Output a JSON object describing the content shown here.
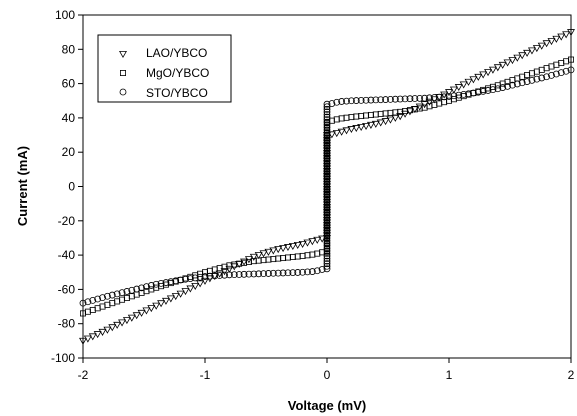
{
  "chart_data": {
    "type": "scatter",
    "title": "",
    "xlabel": "Voltage (mV)",
    "ylabel": "Current (mA)",
    "xlim": [
      -2,
      2
    ],
    "ylim": [
      -100,
      100
    ],
    "xticks": [
      -2,
      -1,
      0,
      1,
      2
    ],
    "yticks": [
      -100,
      -80,
      -60,
      -40,
      -20,
      0,
      20,
      40,
      60,
      80,
      100
    ],
    "grid": false,
    "legend_position": "top-left",
    "series": [
      {
        "name": "LAO/YBCO",
        "marker": "triangle-down",
        "critical_current": 30,
        "points": [
          [
            0.02,
            30
          ],
          [
            0.1,
            31.5
          ],
          [
            0.2,
            33.5
          ],
          [
            0.3,
            35
          ],
          [
            0.4,
            36.5
          ],
          [
            0.5,
            38.5
          ],
          [
            0.6,
            41
          ],
          [
            0.7,
            44.5
          ],
          [
            0.8,
            48
          ],
          [
            0.9,
            51.5
          ],
          [
            1.0,
            55
          ],
          [
            1.2,
            62.5
          ],
          [
            1.4,
            69.5
          ],
          [
            1.6,
            76.5
          ],
          [
            1.8,
            83.5
          ],
          [
            2.0,
            90
          ]
        ]
      },
      {
        "name": "MgO/YBCO",
        "marker": "square",
        "critical_current": 38,
        "points": [
          [
            0.02,
            38
          ],
          [
            0.1,
            39.5
          ],
          [
            0.2,
            40.5
          ],
          [
            0.4,
            42
          ],
          [
            0.6,
            43.5
          ],
          [
            0.8,
            46
          ],
          [
            1.0,
            50
          ],
          [
            1.2,
            54.5
          ],
          [
            1.4,
            59
          ],
          [
            1.6,
            64
          ],
          [
            1.8,
            69
          ],
          [
            2.0,
            74
          ]
        ]
      },
      {
        "name": "STO/YBCO",
        "marker": "circle",
        "critical_current": 48,
        "points": [
          [
            0.02,
            48
          ],
          [
            0.1,
            49.5
          ],
          [
            0.2,
            50
          ],
          [
            0.4,
            50.5
          ],
          [
            0.6,
            51
          ],
          [
            0.8,
            51.5
          ],
          [
            1.0,
            52.5
          ],
          [
            1.2,
            54.5
          ],
          [
            1.4,
            57
          ],
          [
            1.6,
            60.5
          ],
          [
            1.8,
            64
          ],
          [
            2.0,
            68
          ]
        ]
      }
    ]
  }
}
